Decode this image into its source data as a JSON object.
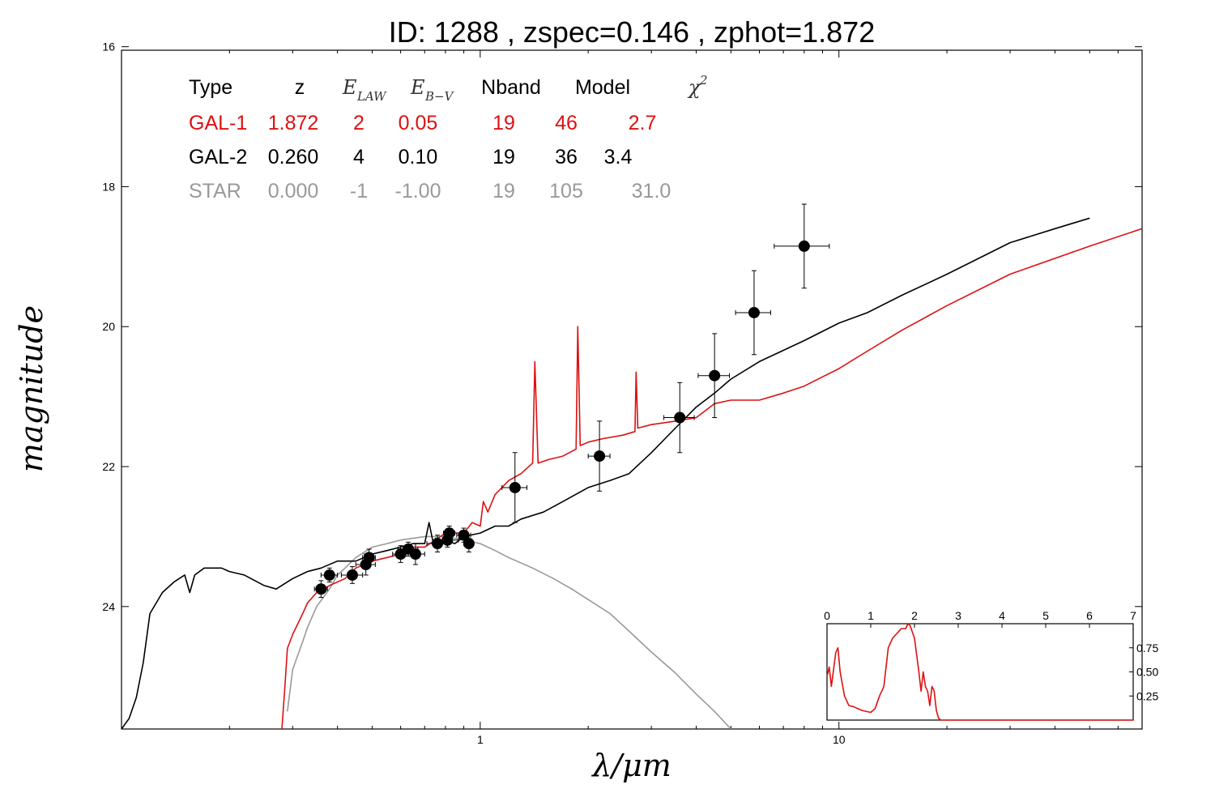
{
  "chart_data": {
    "type": "scatter",
    "title": "ID:  1288  , zspec=0.146 , zphot=1.872",
    "xlabel": "λ/μm",
    "ylabel": "magnitude",
    "xscale": "log",
    "yaxis_inverted": true,
    "xlim": [
      0.1,
      70
    ],
    "ylim": [
      25.75,
      16.05
    ],
    "x_ticks": [
      {
        "value": 1,
        "label": "1"
      },
      {
        "value": 10,
        "label": "10"
      }
    ],
    "y_ticks": [
      {
        "value": 16,
        "label": "16"
      },
      {
        "value": 18,
        "label": "18"
      },
      {
        "value": 20,
        "label": "20"
      },
      {
        "value": 22,
        "label": "22"
      },
      {
        "value": 24,
        "label": "24"
      }
    ],
    "grid": false,
    "colors": {
      "gal1": "#dd1111",
      "gal2": "#000000",
      "star": "#999999",
      "points": "#000000"
    },
    "fit_table": {
      "headers": {
        "type": "Type",
        "z": "z",
        "elaw": "E",
        "elaw_sub": "LAW",
        "ebv": "E",
        "ebv_sub": "B−V",
        "nband": "Nband",
        "model": "Model",
        "chi2": "χ",
        "chi2_sup": "2"
      },
      "rows": [
        {
          "type": "GAL-1",
          "z": "1.872",
          "elaw": "2",
          "ebv": "0.05",
          "nband": "19",
          "model": "46",
          "chi2": "2.7",
          "color": "#dd1111"
        },
        {
          "type": "GAL-2",
          "z": "0.260",
          "elaw": "4",
          "ebv": "0.10",
          "nband": "19",
          "model": "36",
          "chi2": "3.4",
          "color": "#000000"
        },
        {
          "type": "STAR",
          "z": "0.000",
          "elaw": "-1",
          "ebv": "-1.00",
          "nband": "19",
          "model": "105",
          "chi2": "31.0",
          "color": "#999999"
        }
      ]
    },
    "photometry": [
      {
        "x": 0.36,
        "y": 23.75,
        "xerr": 0.015,
        "yerr": 0.12
      },
      {
        "x": 0.38,
        "y": 23.55,
        "xerr": 0.02,
        "yerr": 0.1
      },
      {
        "x": 0.44,
        "y": 23.55,
        "xerr": 0.03,
        "yerr": 0.12
      },
      {
        "x": 0.48,
        "y": 23.4,
        "xerr": 0.03,
        "yerr": 0.15
      },
      {
        "x": 0.49,
        "y": 23.3,
        "xerr": 0.02,
        "yerr": 0.12
      },
      {
        "x": 0.6,
        "y": 23.25,
        "xerr": 0.03,
        "yerr": 0.12
      },
      {
        "x": 0.63,
        "y": 23.18,
        "xerr": 0.04,
        "yerr": 0.1
      },
      {
        "x": 0.66,
        "y": 23.25,
        "xerr": 0.04,
        "yerr": 0.15
      },
      {
        "x": 0.76,
        "y": 23.1,
        "xerr": 0.05,
        "yerr": 0.12
      },
      {
        "x": 0.81,
        "y": 23.05,
        "xerr": 0.06,
        "yerr": 0.1
      },
      {
        "x": 0.82,
        "y": 22.95,
        "xerr": 0.03,
        "yerr": 0.1
      },
      {
        "x": 0.9,
        "y": 22.98,
        "xerr": 0.04,
        "yerr": 0.1
      },
      {
        "x": 0.93,
        "y": 23.1,
        "xerr": 0.03,
        "yerr": 0.12
      },
      {
        "x": 1.25,
        "y": 22.3,
        "xerr": 0.1,
        "yerr": 0.5
      },
      {
        "x": 2.15,
        "y": 21.85,
        "xerr": 0.15,
        "yerr": 0.5
      },
      {
        "x": 3.6,
        "y": 21.3,
        "xerr": 0.35,
        "yerr": 0.5
      },
      {
        "x": 4.5,
        "y": 20.7,
        "xerr": 0.45,
        "yerr": 0.6
      },
      {
        "x": 5.8,
        "y": 19.8,
        "xerr": 0.65,
        "yerr": 0.6
      },
      {
        "x": 8.0,
        "y": 18.85,
        "xerr": 1.4,
        "yerr": 0.6
      }
    ],
    "series": [
      {
        "id": "gal2",
        "color": "#000000",
        "x": [
          0.1,
          0.105,
          0.11,
          0.115,
          0.12,
          0.13,
          0.14,
          0.15,
          0.155,
          0.16,
          0.17,
          0.19,
          0.2,
          0.22,
          0.25,
          0.27,
          0.3,
          0.33,
          0.36,
          0.4,
          0.45,
          0.5,
          0.55,
          0.6,
          0.65,
          0.7,
          0.72,
          0.74,
          0.8,
          0.85,
          0.9,
          1.0,
          1.1,
          1.2,
          1.3,
          1.5,
          1.7,
          2.0,
          2.3,
          2.6,
          3.0,
          3.5,
          4.0,
          4.5,
          5.0,
          6.0,
          8.0,
          10.0,
          12.0,
          15.0,
          20.0,
          30.0,
          40.0,
          50.0
        ],
        "y": [
          25.75,
          25.6,
          25.3,
          24.8,
          24.1,
          23.8,
          23.65,
          23.55,
          23.8,
          23.55,
          23.45,
          23.45,
          23.5,
          23.55,
          23.7,
          23.75,
          23.6,
          23.5,
          23.45,
          23.35,
          23.35,
          23.25,
          23.2,
          23.15,
          23.1,
          23.1,
          22.8,
          23.1,
          23.05,
          23.1,
          23.0,
          22.95,
          22.85,
          22.85,
          22.75,
          22.65,
          22.5,
          22.3,
          22.2,
          22.1,
          21.8,
          21.45,
          21.15,
          20.95,
          20.75,
          20.5,
          20.2,
          19.95,
          19.8,
          19.55,
          19.25,
          18.8,
          18.6,
          18.45
        ]
      },
      {
        "id": "gal1",
        "color": "#dd1111",
        "x": [
          0.28,
          0.285,
          0.29,
          0.3,
          0.32,
          0.33,
          0.35,
          0.38,
          0.42,
          0.45,
          0.5,
          0.55,
          0.6,
          0.65,
          0.7,
          0.75,
          0.8,
          0.9,
          0.95,
          1.0,
          1.02,
          1.05,
          1.1,
          1.15,
          1.2,
          1.3,
          1.4,
          1.42,
          1.45,
          1.55,
          1.7,
          1.85,
          1.87,
          1.9,
          2.0,
          2.2,
          2.5,
          2.7,
          2.72,
          2.75,
          3.0,
          3.5,
          4.0,
          4.5,
          5.0,
          5.5,
          6.0,
          7.0,
          8.0,
          10.0,
          12.0,
          15.0,
          20.0,
          30.0,
          50.0,
          70.0
        ],
        "y": [
          25.75,
          25.2,
          24.6,
          24.4,
          24.1,
          23.95,
          23.8,
          23.7,
          23.6,
          23.45,
          23.35,
          23.3,
          23.25,
          23.15,
          23.15,
          23.05,
          22.95,
          22.95,
          22.8,
          22.85,
          22.5,
          22.65,
          22.4,
          22.3,
          22.2,
          22.1,
          21.95,
          20.5,
          21.95,
          21.9,
          21.85,
          21.75,
          20.0,
          21.7,
          21.65,
          21.6,
          21.55,
          21.5,
          20.65,
          21.45,
          21.4,
          21.35,
          21.3,
          21.1,
          21.05,
          21.05,
          21.05,
          20.95,
          20.85,
          20.6,
          20.35,
          20.05,
          19.7,
          19.25,
          18.85,
          18.6
        ]
      },
      {
        "id": "star",
        "color": "#999999",
        "x": [
          0.29,
          0.3,
          0.32,
          0.33,
          0.35,
          0.38,
          0.4,
          0.42,
          0.45,
          0.5,
          0.55,
          0.6,
          0.7,
          0.8,
          0.9,
          1.0,
          1.1,
          1.2,
          1.4,
          1.6,
          1.8,
          2.0,
          2.3,
          2.6,
          3.0,
          3.5,
          4.0,
          4.5,
          5.0
        ],
        "y": [
          25.5,
          24.9,
          24.5,
          24.3,
          24.0,
          23.75,
          23.55,
          23.45,
          23.3,
          23.15,
          23.1,
          23.05,
          23.0,
          23.0,
          23.05,
          23.1,
          23.2,
          23.3,
          23.45,
          23.6,
          23.75,
          23.9,
          24.1,
          24.35,
          24.65,
          24.95,
          25.25,
          25.5,
          25.75
        ]
      }
    ],
    "inset": {
      "xlim": [
        0,
        7
      ],
      "ylim": [
        0,
        1.0
      ],
      "x_ticks": [
        "0",
        "1",
        "2",
        "3",
        "4",
        "5",
        "6",
        "7"
      ],
      "y_ticks": [
        {
          "value": 0.25,
          "label": "0.25"
        },
        {
          "value": 0.5,
          "label": "0.50"
        },
        {
          "value": 0.75,
          "label": "0.75"
        }
      ],
      "pdf": {
        "color": "#dd1111",
        "x": [
          0.0,
          0.05,
          0.1,
          0.2,
          0.25,
          0.3,
          0.4,
          0.5,
          0.6,
          0.8,
          1.0,
          1.1,
          1.2,
          1.3,
          1.4,
          1.5,
          1.6,
          1.7,
          1.8,
          1.85,
          1.9,
          2.0,
          2.1,
          2.15,
          2.2,
          2.25,
          2.3,
          2.35,
          2.4,
          2.45,
          2.5,
          2.55,
          2.6,
          3.0,
          4.0,
          5.0,
          6.0,
          7.0
        ],
        "y": [
          0.45,
          0.55,
          0.35,
          0.7,
          0.75,
          0.5,
          0.25,
          0.15,
          0.14,
          0.1,
          0.08,
          0.12,
          0.25,
          0.35,
          0.75,
          0.85,
          0.9,
          0.95,
          0.95,
          1.0,
          0.98,
          0.85,
          0.5,
          0.3,
          0.5,
          0.35,
          0.3,
          0.15,
          0.35,
          0.3,
          0.1,
          0.02,
          0.0,
          0.0,
          0.0,
          0.0,
          0.0,
          0.0
        ]
      }
    }
  }
}
